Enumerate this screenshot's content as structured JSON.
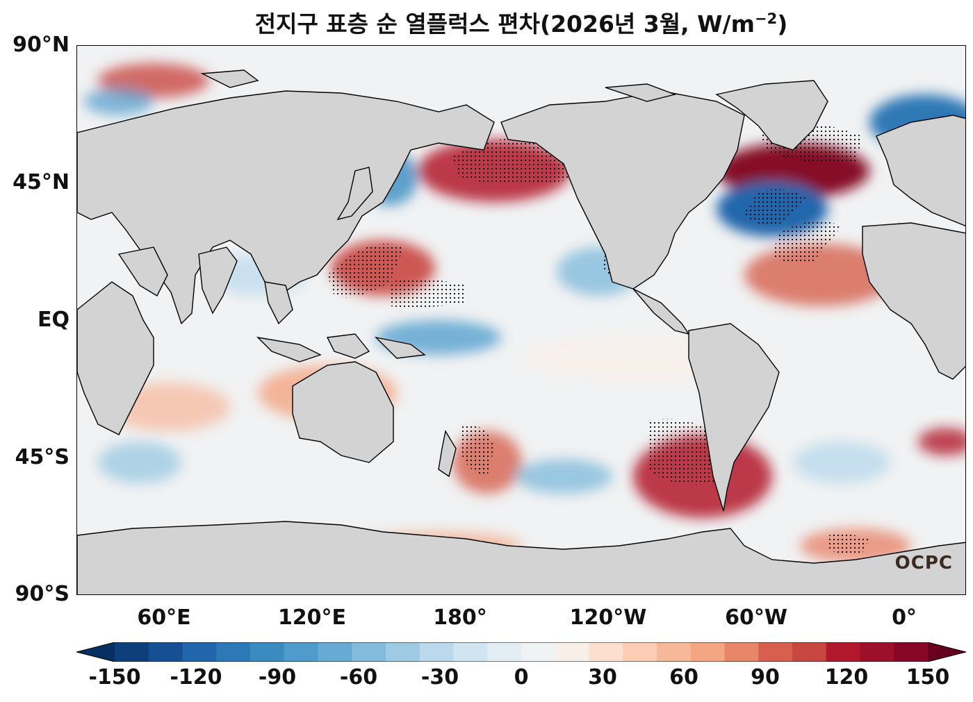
{
  "title": "전지구 표층 순 열플럭스 편차(2026년 3월, W/m",
  "title_sup": "−2",
  "title_close": ")",
  "logo": "OCPC",
  "yticks": [
    "90°N",
    "45°N",
    "EQ",
    "45°S",
    "90°S"
  ],
  "xticks": [
    "60°E",
    "120°E",
    "180°",
    "120°W",
    "60°W",
    "0°"
  ],
  "colorbar": {
    "min": -150,
    "max": 150,
    "step": 10,
    "ticks": [
      "-150",
      "-120",
      "-90",
      "-60",
      "-30",
      "0",
      "30",
      "60",
      "90",
      "120",
      "150"
    ],
    "colors": [
      "#053061",
      "#0d3f7a",
      "#174f94",
      "#2166ac",
      "#2d78b6",
      "#3a8bc0",
      "#4f9bcb",
      "#67aad3",
      "#82bbdc",
      "#9ecae4",
      "#bad9ec",
      "#d1e5f0",
      "#e2edf4",
      "#f0f3f4",
      "#f8efe9",
      "#fddfcf",
      "#fccdb4",
      "#f7b799",
      "#f4a582",
      "#e8866a",
      "#d6604d",
      "#c94741",
      "#b2182b",
      "#9c1029",
      "#860826",
      "#67001f"
    ]
  },
  "land_color": "#d3d3d3"
}
